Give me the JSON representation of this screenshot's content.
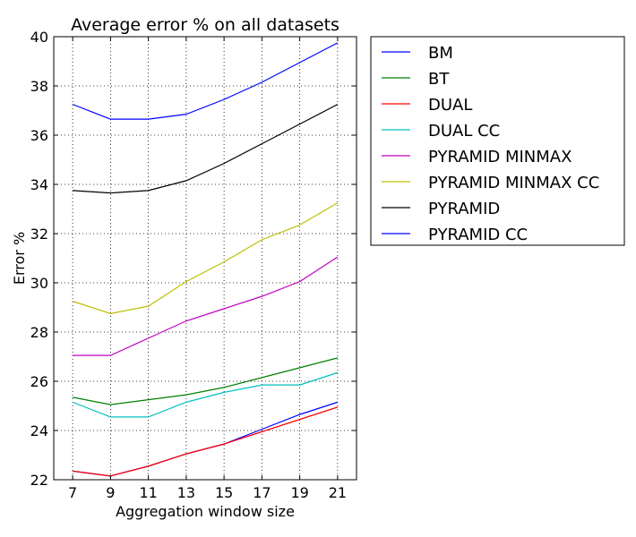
{
  "chart_data": {
    "type": "line",
    "title": "Average error % on all datasets",
    "xlabel": "Aggregation window size",
    "ylabel": "Error %",
    "x": [
      7,
      9,
      11,
      13,
      15,
      17,
      19,
      21
    ],
    "xlim": [
      6,
      22
    ],
    "ylim": [
      22,
      40
    ],
    "xticks": [
      "7",
      "9",
      "11",
      "13",
      "15",
      "17",
      "19",
      "21"
    ],
    "yticks": [
      "22",
      "24",
      "26",
      "28",
      "30",
      "32",
      "34",
      "36",
      "38",
      "40"
    ],
    "grid": true,
    "legend_position": "outside right, top",
    "series": [
      {
        "name": "BM",
        "color": "#0000ff",
        "values": [
          22.35,
          22.15,
          22.55,
          23.05,
          23.45,
          24.05,
          24.65,
          25.15
        ]
      },
      {
        "name": "BT",
        "color": "#008000",
        "values": [
          25.35,
          25.05,
          25.25,
          25.45,
          25.75,
          26.15,
          26.55,
          26.95
        ]
      },
      {
        "name": "DUAL",
        "color": "#ff0000",
        "values": [
          22.35,
          22.15,
          22.55,
          23.05,
          23.45,
          23.95,
          24.45,
          24.95
        ]
      },
      {
        "name": "DUAL CC",
        "color": "#00bfbf",
        "values": [
          25.15,
          24.55,
          24.55,
          25.15,
          25.55,
          25.85,
          25.85,
          26.35
        ]
      },
      {
        "name": "PYRAMID MINMAX",
        "color": "#bf00bf",
        "values": [
          27.05,
          27.05,
          27.75,
          28.45,
          28.95,
          29.45,
          30.05,
          31.05
        ]
      },
      {
        "name": "PYRAMID MINMAX CC",
        "color": "#bfbf00",
        "values": [
          29.25,
          28.75,
          29.05,
          30.05,
          30.85,
          31.75,
          32.35,
          33.25
        ]
      },
      {
        "name": "PYRAMID",
        "color": "#000000",
        "values": [
          33.75,
          33.65,
          33.75,
          34.15,
          34.85,
          35.65,
          36.45,
          37.25
        ]
      },
      {
        "name": "PYRAMID CC",
        "color": "#0000ff",
        "values": [
          37.25,
          36.65,
          36.65,
          36.85,
          37.45,
          38.15,
          38.95,
          39.75
        ]
      }
    ]
  }
}
